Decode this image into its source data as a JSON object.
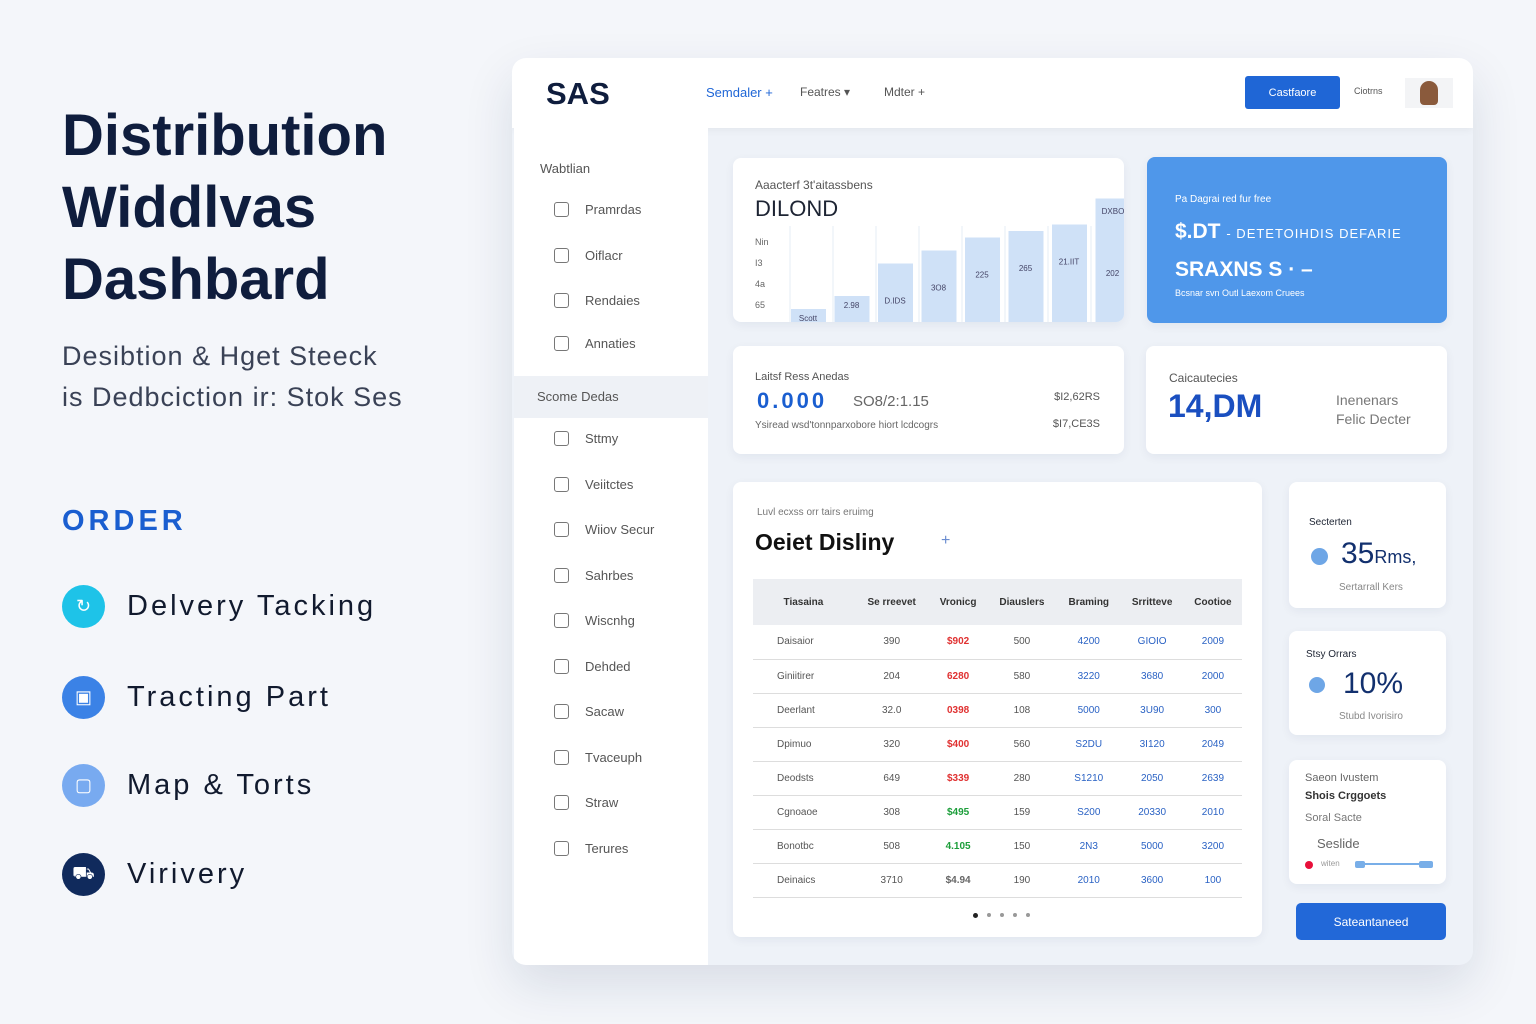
{
  "hero": {
    "title_lines": [
      "Distribution",
      "Widdlvas",
      "Dashbard"
    ],
    "subtitle_lines": [
      "Desibtion & Hget Steeck",
      "is Dedbciction ir: Stok Ses"
    ]
  },
  "order": {
    "heading": "ORDER",
    "items": [
      {
        "label": "Delvery Tacking",
        "icon": "refresh-icon",
        "color": "#1ec3e8"
      },
      {
        "label": "Tracting Part",
        "icon": "box-icon",
        "color": "#3b82e6"
      },
      {
        "label": "Map & Torts",
        "icon": "map-icon",
        "color": "#78aaf0"
      },
      {
        "label": "Virivery",
        "icon": "truck-icon",
        "color": "#102a5c"
      }
    ]
  },
  "header": {
    "logo": "SAS",
    "nav": [
      "Semdaler +",
      "Featres ▾",
      "Mdter +"
    ],
    "primary_button": "Castfaore",
    "secondary_button": "Ciotrns"
  },
  "sidebar": {
    "section1": "Wabtlian",
    "items1": [
      "Pramrdas",
      "Oiflacr",
      "Rendaies",
      "Annaties"
    ],
    "section2": "Scome Dedas",
    "items2": [
      "Sttmy",
      "Veiitctes",
      "Wiiov Secur",
      "Sahrbes",
      "Wiscnhg",
      "Dehded",
      "Sacaw",
      "Tvaceuph",
      "Straw",
      "Terures"
    ]
  },
  "chart_card": {
    "subtitle": "Aaacterf 3t'aitassbens",
    "title": "DILOND",
    "y_labels": [
      "Nin",
      "I3",
      "4a",
      "65"
    ],
    "bar_labels": [
      "Scott",
      "2.98",
      "D.IDS",
      "3O8",
      "225",
      "265",
      "21.IIT",
      "202"
    ],
    "top_label": "DXBO",
    "bar_levels": [
      1,
      2,
      4.5,
      5.5,
      6.5,
      7,
      7.5,
      9.5
    ],
    "bar_color": "#cfe1f7"
  },
  "promo": {
    "line1": "Pa Dagrai red fur free",
    "line2_big": "$.DT",
    "line2_rest": "- DETETOIHDIS DEFARIE",
    "line3": "SRAXNS S · –",
    "line4": "Bcsnar svn Outl Laexom Cruees",
    "bg": "#4f97ea"
  },
  "latest": {
    "label": "Laitsf Ress Anedas",
    "big": "0.000",
    "mid": "SO8/2:1.15",
    "right1": "$I2,62RS",
    "note": "Ysiread wsd'tonnparxobore hiort lcdcogrs",
    "right2": "$I7,CE3S"
  },
  "calc": {
    "label": "Caicautecies",
    "big": "14,DM",
    "side1": "Inenenars",
    "side2": "Felic Decter"
  },
  "table_card": {
    "kicker": "Luvl ecxss orr tairs eruimg",
    "title": "Oeiet Disliny",
    "plus": "+",
    "headers": [
      "Tiasaina",
      "Se rreevet",
      "Vronicg",
      "Diauslers",
      "Braming",
      "Srritteve",
      "Cootioe"
    ],
    "rows": [
      [
        "Daisaior",
        "390",
        "$902",
        "500",
        "4200",
        "GIOIO",
        "2009"
      ],
      [
        "Giniitirer",
        "204",
        "6280",
        "580",
        "3220",
        "3680",
        "2000"
      ],
      [
        "Deerlant",
        "32.0",
        "0398",
        "108",
        "5000",
        "3U90",
        "300"
      ],
      [
        "Dpimuo",
        "320",
        "$400",
        "560",
        "S2DU",
        "3I120",
        "2049"
      ],
      [
        "Deodsts",
        "649",
        "$339",
        "280",
        "S1210",
        "2050",
        "2639"
      ],
      [
        "Cgnoaoe",
        "308",
        "$495",
        "159",
        "S200",
        "20330",
        "2010"
      ],
      [
        "Bonotbc",
        "508",
        "4.105",
        "150",
        "2N3",
        "5000",
        "3200"
      ],
      [
        "Deinaics",
        "3710",
        "$4.94",
        "190",
        "2010",
        "3600",
        "100"
      ]
    ],
    "value_colors": [
      "#e03131",
      "#e03131",
      "#e03131",
      "#e03131",
      "#e03131",
      "#1c9e3a",
      "#1c9e3a",
      "#666"
    ]
  },
  "stat1": {
    "label": "Secterten",
    "big": "35",
    "unit": "Rms,",
    "foot": "Sertarrall Kers"
  },
  "stat2": {
    "label": "Stsy Orrars",
    "big": "10%",
    "foot": "Stubd Ivorisiro"
  },
  "stat3": {
    "l1": "Saeon Ivustem",
    "l2": "Shois Crggoets",
    "l3": "Soral Sacte",
    "l4": "Seslide",
    "slider_label": "witen"
  },
  "action_button": "Sateantaneed"
}
